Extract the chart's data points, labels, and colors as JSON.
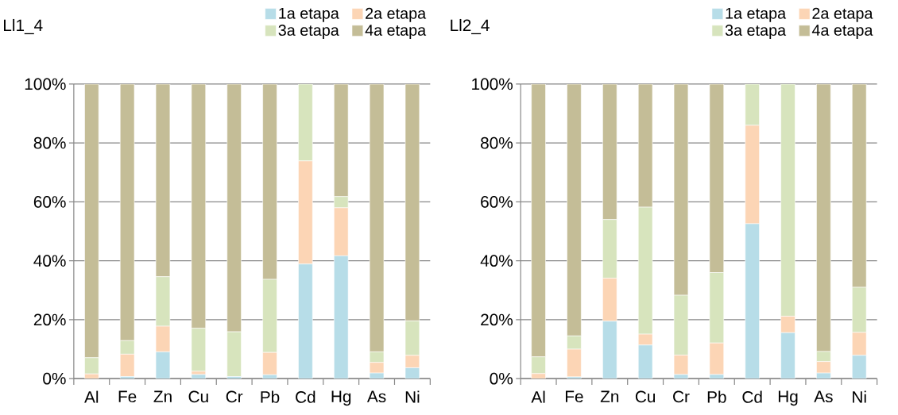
{
  "chart_data": [
    {
      "type": "bar",
      "stacked": true,
      "title": "Ll1_4",
      "categories": [
        "Al",
        "Fe",
        "Zn",
        "Cu",
        "Cr",
        "Pb",
        "Cd",
        "Hg",
        "As",
        "Ni"
      ],
      "series": [
        {
          "name": "1a etapa",
          "color": "#b7dde8",
          "values": [
            0,
            0.7,
            9.1,
            1.4,
            0.7,
            1.3,
            38.9,
            41.7,
            1.9,
            3.7
          ]
        },
        {
          "name": "2a etapa",
          "color": "#fcd5b5",
          "values": [
            1.6,
            7.6,
            8.7,
            1.1,
            0,
            7.6,
            35.0,
            16.3,
            3.6,
            4.2
          ]
        },
        {
          "name": "3a etapa",
          "color": "#d7e4bd",
          "values": [
            5.5,
            4.6,
            16.8,
            14.6,
            15.2,
            24.8,
            26.1,
            3.8,
            3.6,
            11.7
          ]
        },
        {
          "name": "4a etapa",
          "color": "#c4bd97",
          "values": [
            92.9,
            87.1,
            65.4,
            82.9,
            84.1,
            66.3,
            0,
            38.2,
            90.9,
            80.4
          ]
        }
      ],
      "ylim": [
        0,
        100
      ],
      "yticks": [
        {
          "value": 0,
          "label": "0%"
        },
        {
          "value": 20,
          "label": "20%"
        },
        {
          "value": 40,
          "label": "40%"
        },
        {
          "value": 60,
          "label": "60%"
        },
        {
          "value": 80,
          "label": "80%"
        },
        {
          "value": 100,
          "label": "100%"
        }
      ],
      "grid": "y",
      "legend": "top right"
    },
    {
      "type": "bar",
      "stacked": true,
      "title": "Ll2_4",
      "categories": [
        "Al",
        "Fe",
        "Zn",
        "Cu",
        "Cr",
        "Pb",
        "Cd",
        "Hg",
        "As",
        "Ni"
      ],
      "series": [
        {
          "name": "1a etapa",
          "color": "#b7dde8",
          "values": [
            0,
            0.6,
            19.5,
            11.4,
            1.4,
            1.4,
            52.6,
            15.6,
            1.9,
            7.9
          ]
        },
        {
          "name": "2a etapa",
          "color": "#fcd5b5",
          "values": [
            1.7,
            9.4,
            14.6,
            3.7,
            6.6,
            10.7,
            33.4,
            5.6,
            3.9,
            7.8
          ]
        },
        {
          "name": "3a etapa",
          "color": "#d7e4bd",
          "values": [
            5.7,
            4.5,
            19.9,
            43.1,
            20.3,
            23.9,
            14.0,
            78.8,
            3.4,
            15.3
          ]
        },
        {
          "name": "4a etapa",
          "color": "#c4bd97",
          "values": [
            92.6,
            85.5,
            46.0,
            41.8,
            71.7,
            64.0,
            0,
            0,
            90.8,
            69.0
          ]
        }
      ],
      "ylim": [
        0,
        100
      ],
      "yticks": [
        {
          "value": 0,
          "label": "0%"
        },
        {
          "value": 20,
          "label": "20%"
        },
        {
          "value": 40,
          "label": "40%"
        },
        {
          "value": 60,
          "label": "60%"
        },
        {
          "value": 80,
          "label": "80%"
        },
        {
          "value": 100,
          "label": "100%"
        }
      ],
      "grid": "y",
      "legend": "top right"
    }
  ]
}
